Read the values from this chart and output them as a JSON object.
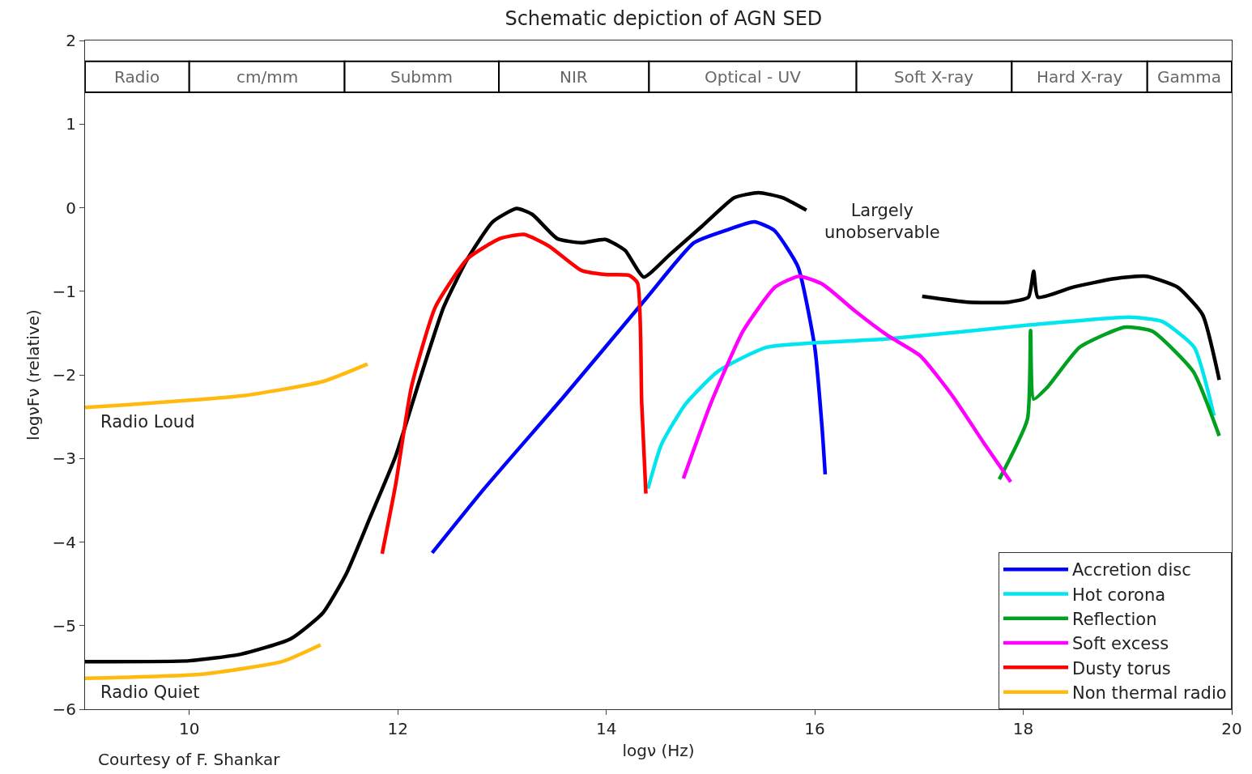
{
  "chart_data": {
    "type": "line",
    "title": "Schematic depiction of AGN SED",
    "xlabel": "logν (Hz)",
    "ylabel": "logνFν (relative)",
    "xlim": [
      9,
      20
    ],
    "xticks": [
      10,
      12,
      14,
      16,
      18,
      20
    ],
    "ylim": [
      -6,
      2
    ],
    "yticks": [
      {
        "value": -6,
        "label": "−6"
      },
      {
        "value": -5,
        "label": "−5"
      },
      {
        "value": -4,
        "label": "−4"
      },
      {
        "value": -3,
        "label": "−3"
      },
      {
        "value": -2,
        "label": "−2"
      },
      {
        "value": -1,
        "label": "−1"
      },
      0,
      1,
      2
    ],
    "grid": false,
    "legend": "bottom right",
    "marker": "none",
    "line_style": "solid",
    "series": [
      {
        "color": "#000000",
        "x": [
          9.0,
          10.0,
          10.5,
          10.97,
          11.28,
          11.51,
          11.74,
          11.98,
          12.21,
          12.44,
          12.67,
          12.91,
          13.14,
          13.29,
          13.53,
          13.76,
          13.99,
          14.18,
          14.36,
          14.61,
          14.92,
          15.23,
          15.46,
          15.69,
          15.92
        ],
        "values": [
          -5.43,
          -5.42,
          -5.34,
          -5.16,
          -4.85,
          -4.37,
          -3.69,
          -2.97,
          -2.06,
          -1.19,
          -0.61,
          -0.17,
          -0.01,
          -0.08,
          -0.37,
          -0.42,
          -0.38,
          -0.51,
          -0.83,
          -0.56,
          -0.22,
          0.12,
          0.18,
          0.12,
          -0.03
        ]
      },
      {
        "color": "#000000",
        "x": [
          17.03,
          17.47,
          17.86,
          18.05,
          18.1,
          18.14,
          18.48,
          18.87,
          19.18,
          19.48,
          19.72,
          19.88
        ],
        "values": [
          -1.06,
          -1.13,
          -1.13,
          -1.07,
          -0.76,
          -1.07,
          -0.95,
          -0.85,
          -0.82,
          -0.95,
          -1.28,
          -2.06
        ]
      },
      {
        "name": "Accretion disc",
        "color": "#0000ff",
        "x": [
          12.33,
          12.83,
          13.6,
          14.38,
          14.84,
          15.15,
          15.42,
          15.61,
          15.84,
          16.0,
          16.07,
          16.1
        ],
        "values": [
          -4.13,
          -3.36,
          -2.25,
          -1.09,
          -0.42,
          -0.27,
          -0.17,
          -0.27,
          -0.71,
          -1.67,
          -2.63,
          -3.19
        ]
      },
      {
        "name": "Hot corona",
        "color": "#00e5ee",
        "x": [
          14.4,
          14.53,
          14.76,
          15.07,
          15.54,
          16.7,
          18.09,
          19.02,
          19.33,
          19.64,
          19.83
        ],
        "values": [
          -3.36,
          -2.83,
          -2.35,
          -1.96,
          -1.67,
          -1.57,
          -1.4,
          -1.31,
          -1.36,
          -1.67,
          -2.49
        ]
      },
      {
        "name": "Reflection",
        "color": "#00a020",
        "x": [
          17.77,
          18.04,
          18.07,
          18.1,
          18.23,
          18.54,
          18.97,
          19.24,
          19.63,
          19.88
        ],
        "values": [
          -3.25,
          -2.53,
          -1.47,
          -2.29,
          -2.15,
          -1.67,
          -1.43,
          -1.48,
          -1.96,
          -2.73
        ]
      },
      {
        "name": "Soft excess",
        "color": "#ff00ff",
        "x": [
          14.74,
          15.0,
          15.31,
          15.62,
          15.85,
          16.08,
          16.39,
          16.7,
          17.01,
          17.32,
          17.63,
          17.88
        ],
        "values": [
          -3.24,
          -2.35,
          -1.48,
          -0.95,
          -0.82,
          -0.92,
          -1.24,
          -1.53,
          -1.77,
          -2.25,
          -2.83,
          -3.28
        ]
      },
      {
        "name": "Dusty torus",
        "color": "#ff0000",
        "x": [
          11.85,
          11.98,
          12.13,
          12.36,
          12.67,
          12.98,
          13.21,
          13.45,
          13.76,
          13.99,
          14.22,
          14.3,
          14.34,
          14.38
        ],
        "values": [
          -4.14,
          -3.31,
          -2.15,
          -1.19,
          -0.61,
          -0.37,
          -0.32,
          -0.46,
          -0.75,
          -0.8,
          -0.81,
          -0.9,
          -2.34,
          -3.42
        ]
      },
      {
        "name": "Non thermal radio",
        "color": "#ffb90f",
        "x": [
          9.0,
          10.51,
          11.28,
          11.71
        ],
        "values": [
          -2.39,
          -2.25,
          -2.08,
          -1.87
        ]
      },
      {
        "color": "#ffb90f",
        "x": [
          9.0,
          10.12,
          10.89,
          11.26
        ],
        "values": [
          -5.63,
          -5.58,
          -5.43,
          -5.23
        ]
      }
    ],
    "bands": [
      {
        "axis": "x",
        "from": 9.0,
        "to": 10.0,
        "label": "Radio"
      },
      {
        "axis": "x",
        "from": 10.0,
        "to": 11.49,
        "label": "cm/mm"
      },
      {
        "axis": "x",
        "from": 11.49,
        "to": 12.97,
        "label": "Submm"
      },
      {
        "axis": "x",
        "from": 12.97,
        "to": 14.41,
        "label": "NIR"
      },
      {
        "axis": "x",
        "from": 14.41,
        "to": 16.4,
        "label": "Optical - UV"
      },
      {
        "axis": "x",
        "from": 16.4,
        "to": 17.89,
        "label": "Soft X-ray"
      },
      {
        "axis": "x",
        "from": 17.89,
        "to": 19.19,
        "label": "Hard X-ray"
      },
      {
        "axis": "x",
        "from": 19.19,
        "to": 20.0,
        "label": "Gamma"
      }
    ],
    "annotations": [
      "Largely unobservable",
      "Radio Loud",
      "Radio Quiet",
      "Courtesy of F. Shankar"
    ]
  }
}
